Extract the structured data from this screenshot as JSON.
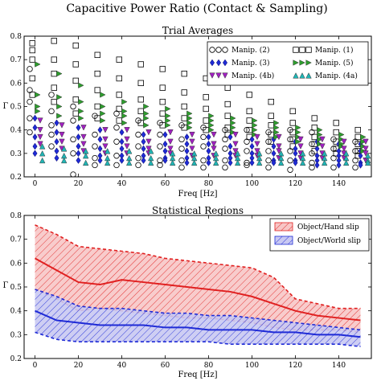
{
  "figure_title": "Capacitive Power Ratio (Contact & Sampling)",
  "chart_data": [
    {
      "type": "scatter",
      "title": "Trial Averages",
      "xlabel": "Freq [Hz]",
      "ylabel": "Γ",
      "xlim": [
        -5,
        155
      ],
      "ylim": [
        0.2,
        0.8
      ],
      "xticks": [
        0,
        20,
        40,
        60,
        80,
        100,
        120,
        140
      ],
      "yticks": [
        0.2,
        0.3,
        0.4,
        0.5,
        0.6,
        0.7,
        0.8
      ],
      "x": [
        0,
        10,
        20,
        30,
        40,
        50,
        60,
        70,
        80,
        90,
        100,
        110,
        120,
        130,
        140,
        150
      ],
      "legend_position": "top-right",
      "series": [
        {
          "name": "Manip. (2)",
          "marker": "circle",
          "color": "#000000",
          "filled": false,
          "offset": -2.4,
          "values": [
            [
              0.66,
              0.57,
              0.52,
              0.45,
              0.39
            ],
            [
              0.55,
              0.48,
              0.42,
              0.38,
              0.33
            ],
            [
              0.5,
              0.44,
              0.36,
              0.3,
              0.21
            ],
            [
              0.46,
              0.38,
              0.33,
              0.28,
              0.25
            ],
            [
              0.47,
              0.41,
              0.35,
              0.29,
              0.25
            ],
            [
              0.44,
              0.38,
              0.33,
              0.28,
              0.25
            ],
            [
              0.43,
              0.38,
              0.33,
              0.27,
              0.25
            ],
            [
              0.42,
              0.36,
              0.32,
              0.27,
              0.24
            ],
            [
              0.41,
              0.37,
              0.33,
              0.27,
              0.24
            ],
            [
              0.4,
              0.36,
              0.32,
              0.27,
              0.24
            ],
            [
              0.4,
              0.35,
              0.31,
              0.26,
              0.25
            ],
            [
              0.39,
              0.35,
              0.31,
              0.27,
              0.24
            ],
            [
              0.4,
              0.36,
              0.31,
              0.27,
              0.23
            ],
            [
              0.39,
              0.34,
              0.3,
              0.26,
              0.24
            ],
            [
              0.36,
              0.32,
              0.28,
              0.24
            ],
            [
              0.35,
              0.31,
              0.27,
              0.24
            ]
          ]
        },
        {
          "name": "Manip. (1)",
          "marker": "square",
          "color": "#000000",
          "filled": false,
          "offset": -1.2,
          "values": [
            [
              0.77,
              0.74,
              0.7,
              0.62,
              0.55
            ],
            [
              0.78,
              0.7,
              0.64,
              0.58,
              0.52
            ],
            [
              0.76,
              0.68,
              0.61,
              0.53,
              0.47
            ],
            [
              0.72,
              0.64,
              0.57,
              0.5,
              0.45
            ],
            [
              0.7,
              0.62,
              0.55,
              0.49,
              0.44
            ],
            [
              0.68,
              0.6,
              0.53,
              0.48,
              0.43
            ],
            [
              0.66,
              0.58,
              0.52,
              0.47,
              0.42
            ],
            [
              0.64,
              0.56,
              0.5,
              0.45,
              0.41
            ],
            [
              0.62,
              0.54,
              0.49,
              0.44,
              0.4
            ],
            [
              0.58,
              0.51,
              0.46,
              0.41,
              0.38
            ],
            [
              0.55,
              0.48,
              0.44,
              0.4,
              0.37
            ],
            [
              0.52,
              0.46,
              0.42,
              0.38,
              0.35
            ],
            [
              0.48,
              0.43,
              0.39,
              0.36,
              0.33
            ],
            [
              0.45,
              0.41,
              0.37,
              0.34,
              0.31
            ],
            [
              0.43,
              0.39,
              0.35,
              0.32,
              0.3
            ],
            [
              0.4,
              0.37,
              0.34,
              0.31,
              0.29
            ]
          ]
        },
        {
          "name": "Manip. (3)",
          "marker": "diamond",
          "color": "#1f2bd6",
          "filled": true,
          "offset": 0,
          "values": [
            [
              0.45,
              0.41,
              0.37,
              0.33,
              0.3
            ],
            [
              0.43,
              0.39,
              0.35,
              0.31,
              0.28
            ],
            [
              0.41,
              0.37,
              0.33,
              0.3,
              0.27
            ],
            [
              0.4,
              0.36,
              0.32,
              0.29,
              0.27
            ],
            [
              0.39,
              0.35,
              0.32,
              0.29,
              0.27
            ],
            [
              0.38,
              0.35,
              0.32,
              0.29,
              0.27
            ],
            [
              0.38,
              0.34,
              0.31,
              0.28,
              0.27
            ],
            [
              0.37,
              0.34,
              0.31,
              0.28,
              0.26
            ],
            [
              0.37,
              0.34,
              0.31,
              0.28,
              0.26
            ],
            [
              0.37,
              0.33,
              0.3,
              0.28,
              0.26
            ],
            [
              0.36,
              0.33,
              0.3,
              0.28,
              0.26
            ],
            [
              0.36,
              0.33,
              0.3,
              0.27,
              0.26
            ],
            [
              0.35,
              0.32,
              0.3,
              0.27,
              0.26
            ],
            [
              0.35,
              0.32,
              0.29,
              0.27,
              0.25
            ],
            [
              0.34,
              0.31,
              0.29,
              0.27,
              0.25
            ],
            [
              0.34,
              0.31,
              0.29,
              0.26,
              0.25
            ]
          ]
        },
        {
          "name": "Manip. (5)",
          "marker": "triangle-right",
          "color": "#2e9e2e",
          "filled": true,
          "offset": 1.2,
          "values": [
            [
              0.68,
              0.55,
              0.5,
              0.48
            ],
            [
              0.64,
              0.54,
              0.5,
              0.46
            ],
            [
              0.59,
              0.52,
              0.48,
              0.45
            ],
            [
              0.55,
              0.5,
              0.47,
              0.44
            ],
            [
              0.52,
              0.48,
              0.46,
              0.43
            ],
            [
              0.5,
              0.47,
              0.45,
              0.42
            ],
            [
              0.49,
              0.46,
              0.44,
              0.42
            ],
            [
              0.47,
              0.45,
              0.43,
              0.41
            ],
            [
              0.46,
              0.44,
              0.42,
              0.4
            ],
            [
              0.45,
              0.43,
              0.41,
              0.39
            ],
            [
              0.44,
              0.42,
              0.4,
              0.38
            ],
            [
              0.43,
              0.41,
              0.39,
              0.37
            ],
            [
              0.41,
              0.39,
              0.37,
              0.35
            ],
            [
              0.4,
              0.38,
              0.36,
              0.34
            ],
            [
              0.38,
              0.36,
              0.34,
              0.33
            ],
            [
              0.37,
              0.35,
              0.33,
              0.31
            ]
          ]
        },
        {
          "name": "Manip. (4b)",
          "marker": "triangle-down",
          "color": "#a020c0",
          "filled": true,
          "offset": 2.4,
          "values": [
            [
              0.44,
              0.4,
              0.37,
              0.34
            ],
            [
              0.42,
              0.38,
              0.35,
              0.32
            ],
            [
              0.41,
              0.37,
              0.34,
              0.31
            ],
            [
              0.4,
              0.36,
              0.33,
              0.3
            ],
            [
              0.4,
              0.36,
              0.33,
              0.3
            ],
            [
              0.39,
              0.35,
              0.32,
              0.3
            ],
            [
              0.39,
              0.35,
              0.32,
              0.3
            ],
            [
              0.38,
              0.35,
              0.32,
              0.29
            ],
            [
              0.38,
              0.34,
              0.32,
              0.29
            ],
            [
              0.38,
              0.34,
              0.31,
              0.29
            ],
            [
              0.37,
              0.34,
              0.31,
              0.29
            ],
            [
              0.37,
              0.33,
              0.31,
              0.28
            ],
            [
              0.36,
              0.33,
              0.3,
              0.28
            ],
            [
              0.36,
              0.33,
              0.3,
              0.28
            ],
            [
              0.35,
              0.32,
              0.3,
              0.28
            ],
            [
              0.35,
              0.32,
              0.3,
              0.27
            ]
          ]
        },
        {
          "name": "Manip. (4a)",
          "marker": "triangle-up",
          "color": "#20b5b5",
          "filled": true,
          "offset": 3.4,
          "values": [
            [
              0.33,
              0.3,
              0.27
            ],
            [
              0.32,
              0.29,
              0.27
            ],
            [
              0.31,
              0.29,
              0.26
            ],
            [
              0.31,
              0.28,
              0.26
            ],
            [
              0.31,
              0.28,
              0.26
            ],
            [
              0.31,
              0.28,
              0.26
            ],
            [
              0.3,
              0.28,
              0.26
            ],
            [
              0.3,
              0.28,
              0.26
            ],
            [
              0.3,
              0.28,
              0.26
            ],
            [
              0.3,
              0.28,
              0.26
            ],
            [
              0.3,
              0.28,
              0.26
            ],
            [
              0.3,
              0.28,
              0.26
            ],
            [
              0.3,
              0.28,
              0.26
            ],
            [
              0.3,
              0.28,
              0.26
            ],
            [
              0.3,
              0.28,
              0.26
            ],
            [
              0.29,
              0.27,
              0.26
            ]
          ]
        }
      ]
    },
    {
      "type": "area",
      "title": "Statistical Regions",
      "xlabel": "Freq [Hz]",
      "ylabel": "Γ",
      "xlim": [
        -5,
        155
      ],
      "ylim": [
        0.2,
        0.8
      ],
      "xticks": [
        0,
        20,
        40,
        60,
        80,
        100,
        120,
        140
      ],
      "yticks": [
        0.2,
        0.3,
        0.4,
        0.5,
        0.6,
        0.7,
        0.8
      ],
      "x": [
        0,
        10,
        20,
        30,
        40,
        50,
        60,
        70,
        80,
        90,
        100,
        110,
        120,
        130,
        140,
        150
      ],
      "legend_position": "top-right",
      "series": [
        {
          "name": "Object/Hand slip",
          "color": "#e02020",
          "fill": "#f7c6c6",
          "hatch": "diagonal",
          "mean": [
            0.62,
            0.57,
            0.52,
            0.51,
            0.53,
            0.52,
            0.51,
            0.5,
            0.49,
            0.48,
            0.46,
            0.43,
            0.4,
            0.38,
            0.37,
            0.36
          ],
          "upper": [
            0.76,
            0.72,
            0.67,
            0.66,
            0.65,
            0.64,
            0.62,
            0.61,
            0.6,
            0.59,
            0.58,
            0.54,
            0.45,
            0.43,
            0.41,
            0.41
          ],
          "lower": [
            0.49,
            0.45,
            0.4,
            0.41,
            0.4,
            0.39,
            0.38,
            0.37,
            0.37,
            0.36,
            0.35,
            0.33,
            0.32,
            0.32,
            0.32,
            0.31
          ]
        },
        {
          "name": "Object/World slip",
          "color": "#1f2bd6",
          "fill": "#c9c9f2",
          "hatch": "diagonal",
          "mean": [
            0.4,
            0.36,
            0.35,
            0.34,
            0.34,
            0.34,
            0.33,
            0.33,
            0.32,
            0.32,
            0.32,
            0.31,
            0.31,
            0.3,
            0.3,
            0.29
          ],
          "upper": [
            0.49,
            0.46,
            0.42,
            0.41,
            0.41,
            0.4,
            0.39,
            0.39,
            0.38,
            0.38,
            0.37,
            0.36,
            0.35,
            0.34,
            0.33,
            0.32
          ],
          "lower": [
            0.31,
            0.28,
            0.27,
            0.27,
            0.27,
            0.27,
            0.27,
            0.27,
            0.27,
            0.26,
            0.26,
            0.26,
            0.26,
            0.26,
            0.26,
            0.25
          ]
        }
      ]
    }
  ]
}
